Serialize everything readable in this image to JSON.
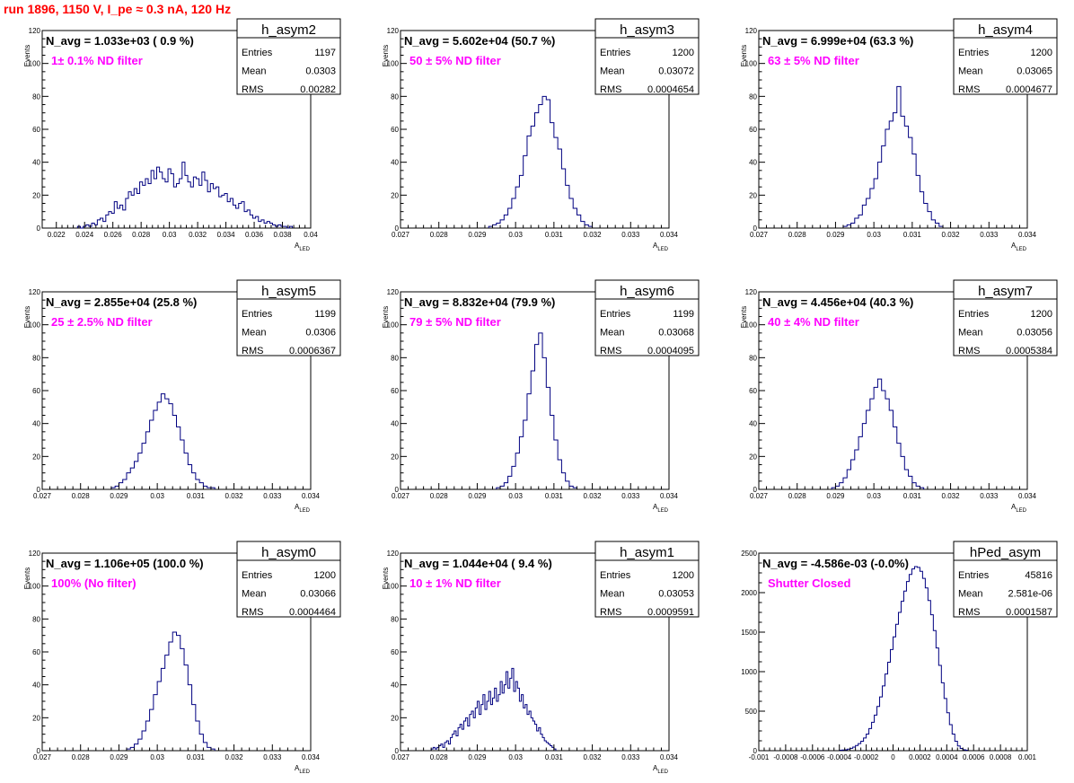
{
  "run_title": "run 1896,  1150 V, I_pe ≈ 0.3 nA, 120 Hz",
  "colors": {
    "hist_line": "#000080",
    "title_red": "#ff0000",
    "annot_magenta": "#ff00ff",
    "frame": "#000000"
  },
  "chart_data": [
    {
      "type": "bar",
      "name": "h_asym2",
      "title": "h_asym2",
      "annotation": "N_avg = 1.033e+03 ( 0.9 %)",
      "filter_label": "1± 0.1% ND filter",
      "stats": [
        [
          "Entries",
          "1197"
        ],
        [
          "Mean",
          "0.0303"
        ],
        [
          "RMS",
          "0.00282"
        ]
      ],
      "ylabel": "Events",
      "xlabel": "A",
      "xlabel_sub": "LED",
      "xlim": [
        0.021,
        0.04
      ],
      "ylim": [
        0,
        120
      ],
      "xticks": [
        0.022,
        0.024,
        0.026,
        0.028,
        0.03,
        0.032,
        0.034,
        0.036,
        0.038,
        0.04
      ],
      "xticklabels": [
        "0.022",
        "0.024",
        "0.026",
        "0.028",
        "0.03",
        "0.032",
        "0.034",
        "0.036",
        "0.038",
        "0.04"
      ],
      "yticks": [
        0,
        20,
        40,
        60,
        80,
        100,
        120
      ],
      "yticklabels": [
        "0",
        "20",
        "40",
        "60",
        "80",
        "100",
        "120"
      ],
      "x_start": 0.0235,
      "bin_width": 0.0002,
      "values": [
        1,
        0,
        1,
        2,
        1,
        3,
        2,
        5,
        6,
        4,
        8,
        10,
        9,
        16,
        12,
        14,
        11,
        18,
        22,
        20,
        24,
        21,
        28,
        26,
        30,
        27,
        35,
        30,
        37,
        34,
        30,
        28,
        36,
        33,
        25,
        27,
        30,
        40,
        32,
        28,
        25,
        31,
        30,
        26,
        34,
        29,
        22,
        27,
        24,
        25,
        19,
        20,
        21,
        16,
        18,
        14,
        12,
        15,
        16,
        10,
        11,
        8,
        6,
        7,
        4,
        5,
        3,
        4,
        3,
        2,
        1,
        2,
        1,
        1,
        0,
        1
      ]
    },
    {
      "type": "bar",
      "name": "h_asym3",
      "title": "h_asym3",
      "annotation": "N_avg = 5.602e+04 (50.7 %)",
      "filter_label": "50 ± 5% ND filter",
      "stats": [
        [
          "Entries",
          "1200"
        ],
        [
          "Mean",
          "0.03072"
        ],
        [
          "RMS",
          "0.0004654"
        ]
      ],
      "ylabel": "Events",
      "xlabel": "A",
      "xlabel_sub": "LED",
      "xlim": [
        0.027,
        0.034
      ],
      "ylim": [
        0,
        120
      ],
      "xticks": [
        0.027,
        0.028,
        0.029,
        0.03,
        0.031,
        0.032,
        0.033,
        0.034
      ],
      "xticklabels": [
        "0.027",
        "0.028",
        "0.029",
        "0.03",
        "0.031",
        "0.032",
        "0.033",
        "0.034"
      ],
      "yticks": [
        0,
        20,
        40,
        60,
        80,
        100,
        120
      ],
      "yticklabels": [
        "0",
        "20",
        "40",
        "60",
        "80",
        "100",
        "120"
      ],
      "x_start": 0.0293,
      "bin_width": 0.0001,
      "values": [
        1,
        2,
        3,
        5,
        8,
        12,
        18,
        25,
        32,
        44,
        56,
        62,
        70,
        75,
        80,
        78,
        64,
        55,
        48,
        36,
        26,
        18,
        12,
        8,
        4,
        2,
        1
      ]
    },
    {
      "type": "bar",
      "name": "h_asym4",
      "title": "h_asym4",
      "annotation": "N_avg = 6.999e+04 (63.3 %)",
      "filter_label": "63 ± 5% ND filter",
      "stats": [
        [
          "Entries",
          "1200"
        ],
        [
          "Mean",
          "0.03065"
        ],
        [
          "RMS",
          "0.0004677"
        ]
      ],
      "ylabel": "Events",
      "xlabel": "A",
      "xlabel_sub": "LED",
      "xlim": [
        0.027,
        0.034
      ],
      "ylim": [
        0,
        120
      ],
      "xticks": [
        0.027,
        0.028,
        0.029,
        0.03,
        0.031,
        0.032,
        0.033,
        0.034
      ],
      "xticklabels": [
        "0.027",
        "0.028",
        "0.029",
        "0.03",
        "0.031",
        "0.032",
        "0.033",
        "0.034"
      ],
      "yticks": [
        0,
        20,
        40,
        60,
        80,
        100,
        120
      ],
      "yticklabels": [
        "0",
        "20",
        "40",
        "60",
        "80",
        "100",
        "120"
      ],
      "x_start": 0.0292,
      "bin_width": 0.0001,
      "values": [
        1,
        2,
        3,
        6,
        8,
        14,
        18,
        24,
        30,
        40,
        50,
        60,
        65,
        70,
        86,
        68,
        62,
        55,
        45,
        32,
        22,
        15,
        10,
        5,
        3,
        1
      ]
    },
    {
      "type": "bar",
      "name": "h_asym5",
      "title": "h_asym5",
      "annotation": "N_avg = 2.855e+04 (25.8 %)",
      "filter_label": "25 ± 2.5% ND filter",
      "stats": [
        [
          "Entries",
          "1199"
        ],
        [
          "Mean",
          "0.0306"
        ],
        [
          "RMS",
          "0.0006367"
        ]
      ],
      "ylabel": "Events",
      "xlabel": "A",
      "xlabel_sub": "LED",
      "xlim": [
        0.027,
        0.034
      ],
      "ylim": [
        0,
        120
      ],
      "xticks": [
        0.027,
        0.028,
        0.029,
        0.03,
        0.031,
        0.032,
        0.033,
        0.034
      ],
      "xticklabels": [
        "0.027",
        "0.028",
        "0.029",
        "0.03",
        "0.031",
        "0.032",
        "0.033",
        "0.034"
      ],
      "yticks": [
        0,
        20,
        40,
        60,
        80,
        100,
        120
      ],
      "yticklabels": [
        "0",
        "20",
        "40",
        "60",
        "80",
        "100",
        "120"
      ],
      "x_start": 0.0288,
      "bin_width": 0.0001,
      "values": [
        1,
        2,
        4,
        6,
        10,
        13,
        17,
        22,
        28,
        35,
        42,
        48,
        53,
        58,
        55,
        52,
        45,
        38,
        30,
        22,
        15,
        10,
        6,
        4,
        2,
        1,
        1
      ]
    },
    {
      "type": "bar",
      "name": "h_asym6",
      "title": "h_asym6",
      "annotation": "N_avg = 8.832e+04 (79.9 %)",
      "filter_label": "79 ± 5% ND filter",
      "stats": [
        [
          "Entries",
          "1199"
        ],
        [
          "Mean",
          "0.03068"
        ],
        [
          "RMS",
          "0.0004095"
        ]
      ],
      "ylabel": "Events",
      "xlabel": "A",
      "xlabel_sub": "LED",
      "xlim": [
        0.027,
        0.034
      ],
      "ylim": [
        0,
        120
      ],
      "xticks": [
        0.027,
        0.028,
        0.029,
        0.03,
        0.031,
        0.032,
        0.033,
        0.034
      ],
      "xticklabels": [
        "0.027",
        "0.028",
        "0.029",
        "0.03",
        "0.031",
        "0.032",
        "0.033",
        "0.034"
      ],
      "yticks": [
        0,
        20,
        40,
        60,
        80,
        100,
        120
      ],
      "yticklabels": [
        "0",
        "20",
        "40",
        "60",
        "80",
        "100",
        "120"
      ],
      "x_start": 0.0295,
      "bin_width": 0.0001,
      "values": [
        1,
        2,
        4,
        8,
        14,
        22,
        32,
        42,
        58,
        72,
        88,
        95,
        80,
        62,
        45,
        30,
        18,
        10,
        5,
        2,
        1
      ]
    },
    {
      "type": "bar",
      "name": "h_asym7",
      "title": "h_asym7",
      "annotation": "N_avg = 4.456e+04 (40.3 %)",
      "filter_label": "40 ± 4% ND filter",
      "stats": [
        [
          "Entries",
          "1200"
        ],
        [
          "Mean",
          "0.03056"
        ],
        [
          "RMS",
          "0.0005384"
        ]
      ],
      "ylabel": "Events",
      "xlabel": "A",
      "xlabel_sub": "LED",
      "xlim": [
        0.027,
        0.034
      ],
      "ylim": [
        0,
        120
      ],
      "xticks": [
        0.027,
        0.028,
        0.029,
        0.03,
        0.031,
        0.032,
        0.033,
        0.034
      ],
      "xticklabels": [
        "0.027",
        "0.028",
        "0.029",
        "0.03",
        "0.031",
        "0.032",
        "0.033",
        "0.034"
      ],
      "yticks": [
        0,
        20,
        40,
        60,
        80,
        100,
        120
      ],
      "yticklabels": [
        "0",
        "20",
        "40",
        "60",
        "80",
        "100",
        "120"
      ],
      "x_start": 0.0289,
      "bin_width": 0.0001,
      "values": [
        1,
        2,
        4,
        7,
        12,
        18,
        24,
        32,
        40,
        48,
        55,
        62,
        67,
        60,
        55,
        48,
        38,
        28,
        20,
        12,
        8,
        4,
        2,
        1
      ]
    },
    {
      "type": "bar",
      "name": "h_asym0",
      "title": "h_asym0",
      "annotation": "N_avg = 1.106e+05 (100.0 %)",
      "filter_label": "100% (No filter)",
      "stats": [
        [
          "Entries",
          "1200"
        ],
        [
          "Mean",
          "0.03066"
        ],
        [
          "RMS",
          "0.0004464"
        ]
      ],
      "ylabel": "Events",
      "xlabel": "A",
      "xlabel_sub": "LED",
      "xlim": [
        0.027,
        0.034
      ],
      "ylim": [
        0,
        120
      ],
      "xticks": [
        0.027,
        0.028,
        0.029,
        0.03,
        0.031,
        0.032,
        0.033,
        0.034
      ],
      "xticklabels": [
        "0.027",
        "0.028",
        "0.029",
        "0.03",
        "0.031",
        "0.032",
        "0.033",
        "0.034"
      ],
      "yticks": [
        0,
        20,
        40,
        60,
        80,
        100,
        120
      ],
      "yticklabels": [
        "0",
        "20",
        "40",
        "60",
        "80",
        "100",
        "120"
      ],
      "x_start": 0.0292,
      "bin_width": 0.0001,
      "values": [
        1,
        2,
        4,
        7,
        12,
        18,
        25,
        34,
        42,
        50,
        58,
        66,
        72,
        70,
        62,
        52,
        40,
        28,
        18,
        10,
        5,
        2,
        1
      ]
    },
    {
      "type": "bar",
      "name": "h_asym1",
      "title": "h_asym1",
      "annotation": "N_avg = 1.044e+04 ( 9.4 %)",
      "filter_label": "10 ± 1% ND filter",
      "stats": [
        [
          "Entries",
          "1200"
        ],
        [
          "Mean",
          "0.03053"
        ],
        [
          "RMS",
          "0.0009591"
        ]
      ],
      "ylabel": "Events",
      "xlabel": "A",
      "xlabel_sub": "LED",
      "xlim": [
        0.027,
        0.034
      ],
      "ylim": [
        0,
        120
      ],
      "xticks": [
        0.027,
        0.028,
        0.029,
        0.03,
        0.031,
        0.032,
        0.033,
        0.034
      ],
      "xticklabels": [
        "0.027",
        "0.028",
        "0.029",
        "0.03",
        "0.031",
        "0.032",
        "0.033",
        "0.034"
      ],
      "yticks": [
        0,
        20,
        40,
        60,
        80,
        100,
        120
      ],
      "yticklabels": [
        "0",
        "20",
        "40",
        "60",
        "80",
        "100",
        "120"
      ],
      "x_start": 0.0278,
      "bin_width": 5e-05,
      "values": [
        1,
        2,
        1,
        2,
        3,
        4,
        2,
        5,
        6,
        4,
        8,
        10,
        12,
        9,
        14,
        16,
        13,
        18,
        20,
        15,
        22,
        24,
        20,
        26,
        30,
        22,
        28,
        34,
        25,
        30,
        36,
        28,
        32,
        38,
        30,
        34,
        42,
        35,
        40,
        48,
        38,
        44,
        50,
        36,
        42,
        38,
        30,
        34,
        26,
        28,
        22,
        24,
        20,
        18,
        16,
        12,
        14,
        10,
        8,
        6,
        5,
        4,
        3,
        2,
        1
      ]
    },
    {
      "type": "bar",
      "name": "hPed_asym",
      "title": "hPed_asym",
      "annotation": "N_avg = -4.586e-03 (-0.0%)",
      "filter_label": "Shutter Closed",
      "stats": [
        [
          "Entries",
          "45816"
        ],
        [
          "Mean",
          "2.581e-06"
        ],
        [
          "RMS",
          "0.0001587"
        ]
      ],
      "ylabel": "",
      "xlabel": "",
      "xlabel_sub": "",
      "xlim": [
        -0.001,
        0.001
      ],
      "ylim": [
        0,
        2500
      ],
      "xticks": [
        -0.001,
        -0.0008,
        -0.0006,
        -0.0004,
        -0.0002,
        0,
        0.0002,
        0.0004,
        0.0006,
        0.0008,
        0.001
      ],
      "xticklabels": [
        "-0.001",
        "-0.0008",
        "-0.0006",
        "-0.0004",
        "-0.0002",
        "0",
        "0.0002",
        "0.0004",
        "0.0006",
        "0.0008",
        "0.001"
      ],
      "yticks": [
        0,
        500,
        1000,
        1500,
        2000,
        2500
      ],
      "yticklabels": [
        "0",
        "500",
        "1000",
        "1500",
        "2000",
        "2500"
      ],
      "x_start": -0.0004,
      "bin_width": 2e-05,
      "values": [
        5,
        8,
        12,
        20,
        30,
        45,
        65,
        90,
        120,
        160,
        210,
        280,
        360,
        450,
        560,
        680,
        820,
        970,
        1120,
        1280,
        1440,
        1600,
        1750,
        1890,
        2020,
        2140,
        2230,
        2300,
        2330,
        2320,
        2270,
        2180,
        2060,
        1900,
        1720,
        1520,
        1300,
        1080,
        860,
        660,
        480,
        330,
        210,
        120,
        60,
        28,
        12,
        5
      ]
    }
  ]
}
